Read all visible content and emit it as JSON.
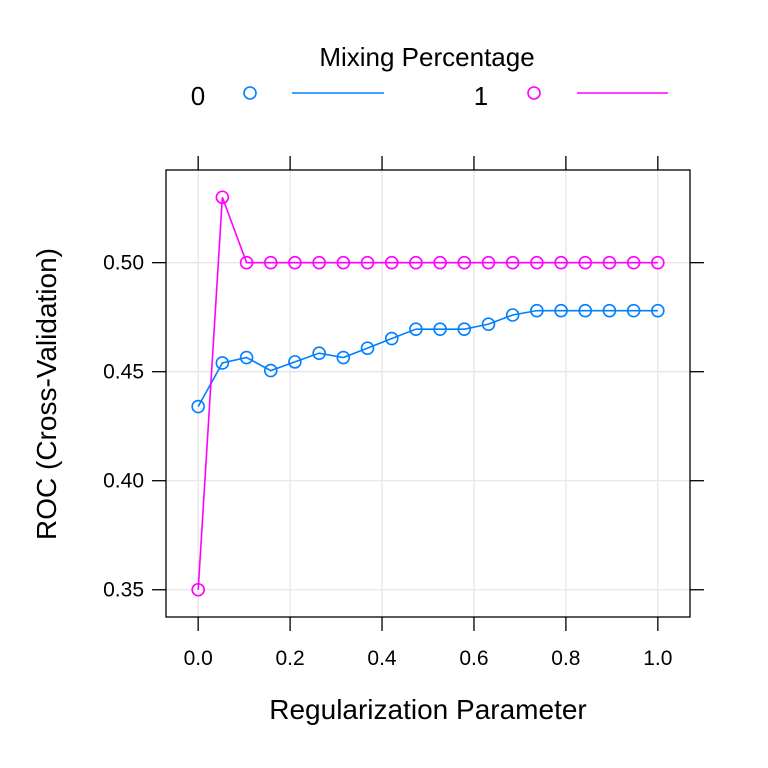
{
  "chart_data": {
    "type": "line",
    "title": "",
    "legend": {
      "title": "Mixing Percentage",
      "placement": "top",
      "entries": [
        {
          "label": "0",
          "color": "#0080ff"
        },
        {
          "label": "1",
          "color": "#ff00ff"
        }
      ]
    },
    "xlabel": "Regularization Parameter",
    "ylabel": "ROC (Cross-Validation)",
    "xlim": [
      -0.07,
      1.07
    ],
    "ylim": [
      0.3375,
      0.5425
    ],
    "xticks": [
      0.0,
      0.2,
      0.4,
      0.6,
      0.8,
      1.0
    ],
    "xtick_labels": [
      "0.0",
      "0.2",
      "0.4",
      "0.6",
      "0.8",
      "1.0"
    ],
    "yticks": [
      0.35,
      0.4,
      0.45,
      0.5
    ],
    "ytick_labels": [
      "0.35",
      "0.40",
      "0.45",
      "0.50"
    ],
    "grid": true,
    "series": [
      {
        "name": "0",
        "color": "#0080ff",
        "x": [
          0.0,
          0.0526,
          0.1053,
          0.1579,
          0.2105,
          0.2632,
          0.3158,
          0.3684,
          0.4211,
          0.4737,
          0.5263,
          0.5789,
          0.6316,
          0.6842,
          0.7368,
          0.7895,
          0.8421,
          0.8947,
          0.9474,
          1.0
        ],
        "y": [
          0.434,
          0.454,
          0.4565,
          0.4505,
          0.4545,
          0.4585,
          0.4565,
          0.4608,
          0.4652,
          0.4695,
          0.4695,
          0.4695,
          0.4718,
          0.476,
          0.478,
          0.478,
          0.478,
          0.478,
          0.478,
          0.478
        ]
      },
      {
        "name": "1",
        "color": "#ff00ff",
        "x": [
          0.0,
          0.0526,
          0.1053,
          0.1579,
          0.2105,
          0.2632,
          0.3158,
          0.3684,
          0.4211,
          0.4737,
          0.5263,
          0.5789,
          0.6316,
          0.6842,
          0.7368,
          0.7895,
          0.8421,
          0.8947,
          0.9474,
          1.0
        ],
        "y": [
          0.35,
          0.53,
          0.5,
          0.5,
          0.5,
          0.5,
          0.5,
          0.5,
          0.5,
          0.5,
          0.5,
          0.5,
          0.5,
          0.5,
          0.5,
          0.5,
          0.5,
          0.5,
          0.5,
          0.5
        ]
      }
    ]
  }
}
